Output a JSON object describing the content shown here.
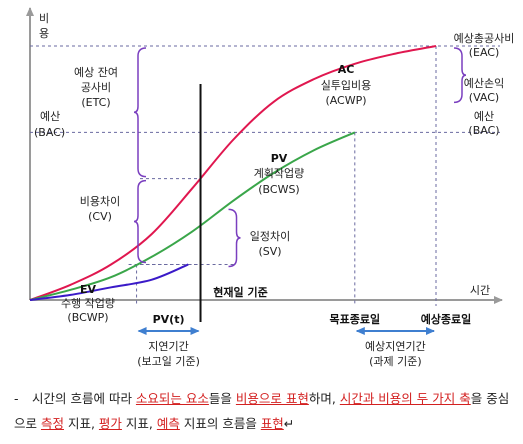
{
  "chart_data": {
    "type": "line",
    "ylabel": "비용",
    "xlabel": "시간",
    "xlim": [
      0,
      100
    ],
    "ylim": [
      0,
      100
    ],
    "series": [
      {
        "key": "ac",
        "name": "AC",
        "name_sub": "실투입비용",
        "name_abbr": "(ACWP)",
        "color": "#e0174f",
        "x": [
          0,
          10,
          20,
          30,
          40,
          50,
          60,
          70,
          80,
          90,
          100
        ],
        "y": [
          0,
          6,
          14,
          26,
          44,
          63,
          78,
          87,
          93,
          97,
          100
        ]
      },
      {
        "key": "pv",
        "name": "PV",
        "name_sub": "계획작업량",
        "name_abbr": "(BCWS)",
        "color": "#3aa64a",
        "x": [
          0,
          10,
          20,
          30,
          40,
          50,
          60,
          70,
          80
        ],
        "y": [
          0,
          4,
          9,
          17,
          27,
          39,
          50,
          59,
          66
        ]
      },
      {
        "key": "ev",
        "name": "EV",
        "name_sub": "수행 작업량",
        "name_abbr": "(BCWP)",
        "color": "#3a1ac8",
        "x": [
          0,
          10,
          20,
          30,
          39
        ],
        "y": [
          0,
          2,
          5,
          8,
          14
        ]
      }
    ],
    "reference_lines": {
      "eac": {
        "label_1": "예상총공사비",
        "label_2": "(EAC)",
        "y": 100
      },
      "bac": {
        "label_1": "예산",
        "label_2": "(BAC)",
        "y": 66
      },
      "now": {
        "x": 42,
        "label": "현재일 기준"
      },
      "target_end": {
        "x": 80,
        "label": "목표종료일"
      },
      "expected_end": {
        "x": 100,
        "label": "예상종료일"
      }
    },
    "annotations": {
      "etc": {
        "lines": [
          "예상 잔여",
          "공사비",
          "(ETC)"
        ]
      },
      "bac_left": {
        "lines": [
          "예산",
          "(BAC)"
        ]
      },
      "cv": {
        "lines": [
          "비용차이",
          "(CV)"
        ]
      },
      "sv": {
        "lines": [
          "일정차이",
          "(SV)"
        ]
      },
      "vac": {
        "lines": [
          "예산손익",
          "(VAC)"
        ]
      },
      "bac_right": {
        "lines": [
          "예산",
          "(BAC)"
        ]
      },
      "pvt": {
        "label": "PV(t)"
      },
      "delay_report": {
        "lines": [
          "지연기간",
          "(보고일 기준)"
        ]
      },
      "delay_task": {
        "lines": [
          "예상지연기간",
          "(과제 기준)"
        ]
      }
    }
  },
  "caption": {
    "bullet": "-",
    "t1": "시간의 흐름에 따라 ",
    "u1": "소요되는 요소",
    "t2": "들을 ",
    "u2": "비용으로 표현",
    "t3": "하며, ",
    "u3": "시간과 비용의 두 가지 축",
    "t4": "을 중심으로 ",
    "u4": "측정",
    "t5": " 지표, ",
    "u5": "평가",
    "t6": " 지표, ",
    "u6": "예측",
    "t7": " 지표의 흐름을 ",
    "u7": "표현",
    "end_mark": "↵"
  }
}
